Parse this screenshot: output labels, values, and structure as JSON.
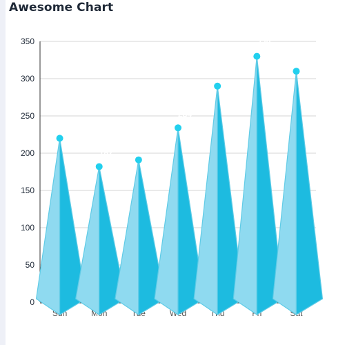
{
  "chart_data": {
    "type": "bar",
    "title": "Awesome Chart",
    "categories": [
      "Sun",
      "Mon",
      "Tue",
      "Wed",
      "Thu",
      "Fri",
      "Sat"
    ],
    "series": [
      {
        "values": [
          220,
          182,
          191,
          234,
          290,
          330,
          310
        ]
      }
    ],
    "ylim": [
      0,
      350
    ],
    "yticks": [
      0,
      50,
      100,
      150,
      200,
      250,
      300,
      350
    ],
    "grid": true,
    "legend": "none",
    "xlabel": "",
    "ylabel": "",
    "colors": {
      "light_face": "#8fdaf0",
      "dark_face": "#1dbbe0",
      "edge": "#5fcbe6",
      "marker": "#22d0ee",
      "grid": "#d4d4d4",
      "axis": "#333333"
    }
  }
}
